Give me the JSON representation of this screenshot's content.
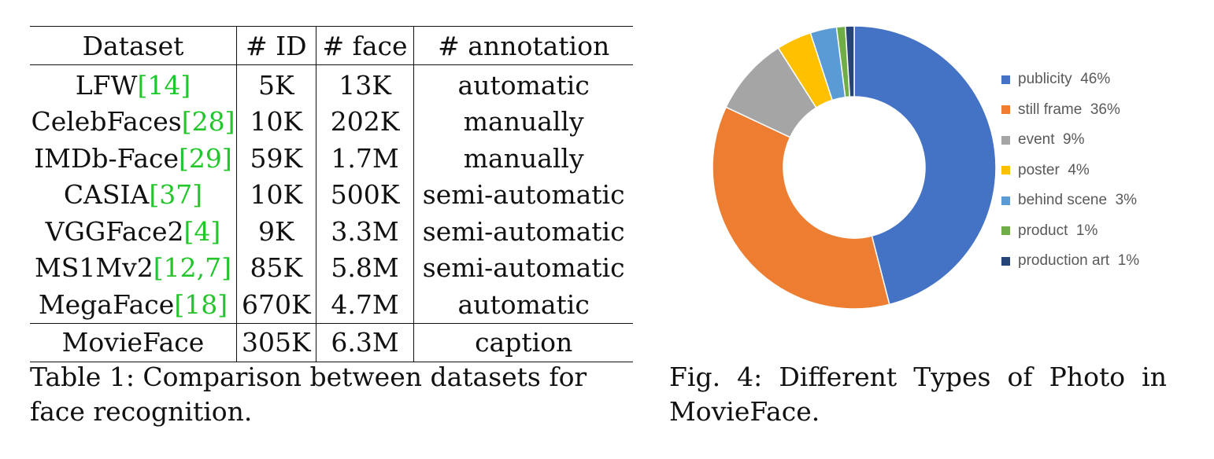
{
  "table": {
    "headers": [
      "Dataset",
      "# ID",
      "# face",
      "# annotation"
    ],
    "rows": [
      {
        "name": "LFW",
        "cite": "14",
        "id": "5K",
        "face": "13K",
        "annotation": "automatic"
      },
      {
        "name": "CelebFaces",
        "cite": "28",
        "id": "10K",
        "face": "202K",
        "annotation": "manually"
      },
      {
        "name": "IMDb-Face",
        "cite": "29",
        "id": "59K",
        "face": "1.7M",
        "annotation": "manually"
      },
      {
        "name": "CASIA",
        "cite": "37",
        "id": "10K",
        "face": "500K",
        "annotation": "semi-automatic"
      },
      {
        "name": "VGGFace2",
        "cite": "4",
        "id": "9K",
        "face": "3.3M",
        "annotation": "semi-automatic"
      },
      {
        "name": "MS1Mv2",
        "cite": "12,7",
        "id": "85K",
        "face": "5.8M",
        "annotation": "semi-automatic"
      },
      {
        "name": "MegaFace",
        "cite": "18",
        "id": "670K",
        "face": "4.7M",
        "annotation": "automatic"
      }
    ],
    "footer": {
      "name": "MovieFace",
      "id": "305K",
      "face": "6.3M",
      "annotation": "caption"
    },
    "caption": "Table 1: Comparison between datasets for face recognition."
  },
  "figure": {
    "caption": "Fig. 4: Different Types of Photo in MovieFace."
  },
  "chart_data": {
    "type": "pie",
    "donut": true,
    "title": "",
    "legend_position": "right",
    "categories": [
      "publicity",
      "still frame",
      "event",
      "poster",
      "behind scene",
      "product",
      "production art"
    ],
    "values": [
      46,
      36,
      9,
      4,
      3,
      1,
      1
    ],
    "legend_labels": [
      "publicity  46%",
      "still frame  36%",
      "event  9%",
      "poster  4%",
      "behind scene  3%",
      "product  1%",
      "production art  1%"
    ],
    "colors": [
      "#4472c4",
      "#ed7d31",
      "#a5a5a5",
      "#ffc000",
      "#5b9bd5",
      "#70ad47",
      "#264478"
    ]
  }
}
